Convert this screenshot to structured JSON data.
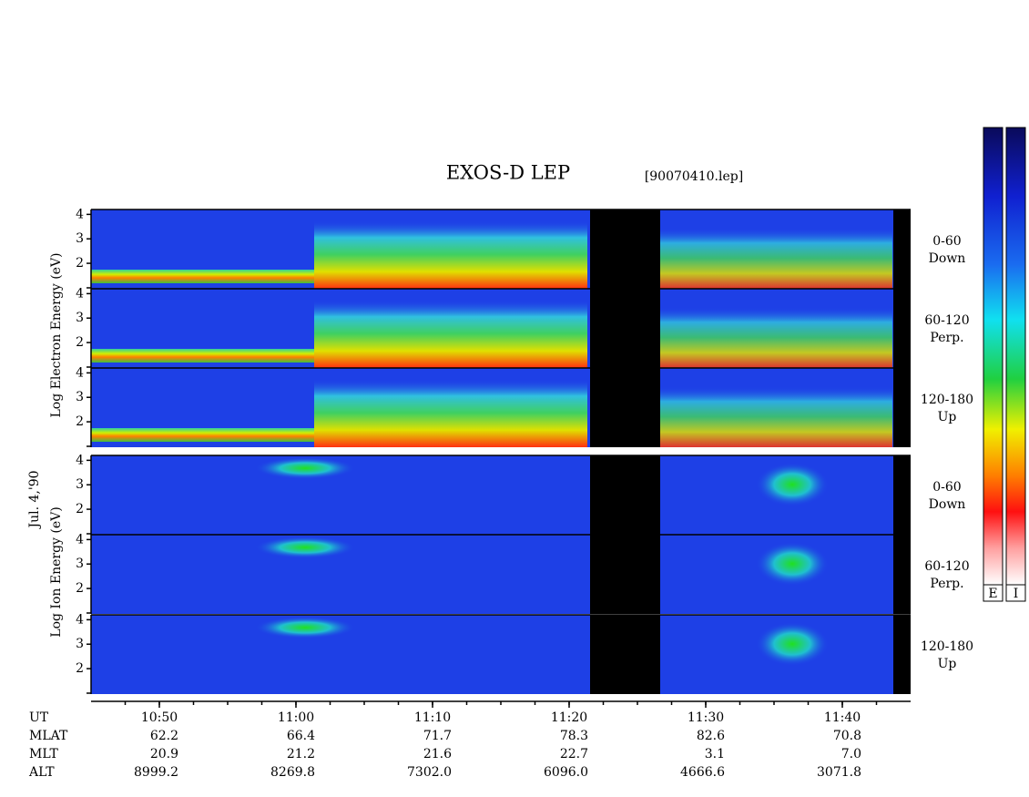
{
  "chart_data": {
    "type": "spectrogram",
    "title": "EXOS-D LEP",
    "file": "[90070410.lep]",
    "date": "Jul. 4,'90",
    "group_labels": [
      "Log Electron Energy (eV)",
      "Log Ion Energy (eV)"
    ],
    "panels": [
      {
        "group": 0,
        "angle": "0-60",
        "direction": "Down"
      },
      {
        "group": 0,
        "angle": "60-120",
        "direction": "Perp."
      },
      {
        "group": 0,
        "angle": "120-180",
        "direction": "Up"
      },
      {
        "group": 1,
        "angle": "0-60",
        "direction": "Down"
      },
      {
        "group": 1,
        "angle": "60-120",
        "direction": "Perp."
      },
      {
        "group": 1,
        "angle": "120-180",
        "direction": "Up"
      }
    ],
    "ylim": [
      0.96,
      4.2
    ],
    "yticks": [
      2,
      3,
      4
    ],
    "xlim": [
      645,
      705
    ],
    "xticks": [
      {
        "value": 650,
        "label": "10:50"
      },
      {
        "value": 660,
        "label": "11:00"
      },
      {
        "value": 670,
        "label": "11:10"
      },
      {
        "value": 680,
        "label": "11:20"
      },
      {
        "value": 690,
        "label": "11:30"
      },
      {
        "value": 700,
        "label": "11:40"
      }
    ],
    "ephemeris": [
      {
        "name": "UT"
      },
      {
        "name": "MLAT",
        "values": [
          "62.2",
          "66.4",
          "71.7",
          "78.3",
          "82.6",
          "70.8"
        ]
      },
      {
        "name": "MLT",
        "values": [
          "20.9",
          "21.2",
          "21.6",
          "22.7",
          "3.1",
          "7.0"
        ]
      },
      {
        "name": "ALT",
        "values": [
          "8999.2",
          "8269.8",
          "7302.0",
          "6096.0",
          "4666.6",
          "3071.8"
        ]
      }
    ],
    "colorbars": [
      "E",
      "I"
    ]
  }
}
